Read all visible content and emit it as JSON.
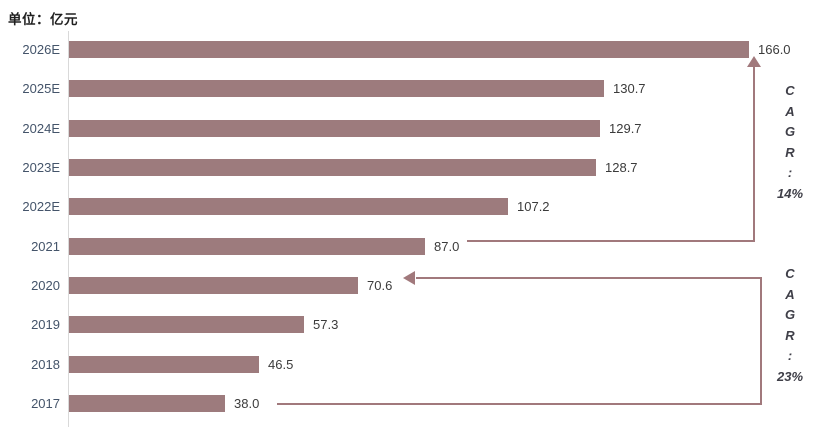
{
  "title": "单位：亿元",
  "chart_data": {
    "type": "bar",
    "orientation": "horizontal",
    "title": "单位：亿元",
    "xlabel": "",
    "ylabel": "",
    "xlim": [
      0,
      166
    ],
    "grid": false,
    "legend": "none",
    "categories": [
      "2026E",
      "2025E",
      "2024E",
      "2023E",
      "2022E",
      "2021",
      "2020",
      "2019",
      "2018",
      "2017"
    ],
    "values": [
      166.0,
      130.7,
      129.7,
      128.7,
      107.2,
      87.0,
      70.6,
      57.3,
      46.5,
      38.0
    ],
    "value_labels": [
      "166.0",
      "130.7",
      "129.7",
      "128.7",
      "107.2",
      "87.0",
      "70.6",
      "57.3",
      "46.5",
      "38.0"
    ],
    "bar_color": "#9d7b7d",
    "annotations": [
      {
        "name": "cagr-upper",
        "lines": [
          "C",
          "A",
          "G",
          "R",
          ":",
          "14%"
        ],
        "text": "CAGR: 14%",
        "from_category": "2021",
        "to_category": "2026E"
      },
      {
        "name": "cagr-lower",
        "lines": [
          "C",
          "A",
          "G",
          "R",
          ":",
          "23%"
        ],
        "text": "CAGR: 23%",
        "from_category": "2017",
        "to_category": "2020"
      }
    ]
  },
  "colors": {
    "bar": "#9d7b7d",
    "connector": "#a1797c",
    "category_label": "#44546a",
    "value_label": "#3b3b3b",
    "cagr_text": "#3f3f48",
    "axis": "#d9d9d9",
    "title": "#1f1f1f",
    "background": "#ffffff"
  }
}
